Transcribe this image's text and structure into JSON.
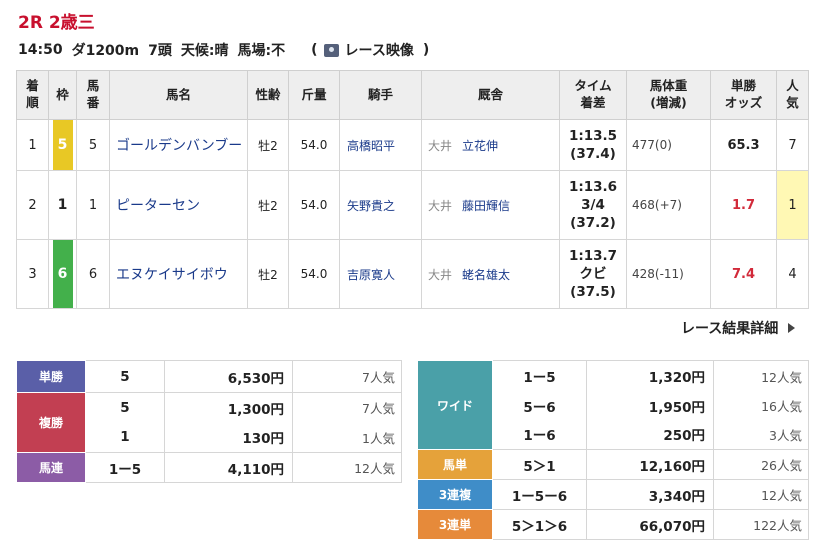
{
  "race": {
    "title": "2R 2歳三",
    "time": "14:50",
    "course": "ダ1200m",
    "heads": "7頭",
    "weather": "天候:晴",
    "going": "馬場:不",
    "paren_open": "(",
    "video_label": "レース映像",
    "paren_close": ")"
  },
  "table": {
    "headers": {
      "rank": "着順",
      "waku": "枠",
      "umaban": "馬番",
      "name": "馬名",
      "sexage": "性齢",
      "kinryo": "斤量",
      "jockey": "騎手",
      "trainer": "厩舎",
      "time": "タイム着差",
      "weight": "馬体重(増減)",
      "odds": "単勝オッズ",
      "pop": "人気"
    },
    "rows": [
      {
        "rank": "1",
        "waku": "5",
        "waku_color": "#e8c825",
        "umaban": "5",
        "name": "ゴールデンバンブー",
        "sexage": "牡2",
        "kinryo": "54.0",
        "jockey": "高橋昭平",
        "region": "大井",
        "trainer": "立花伸",
        "time": "1:13.5",
        "margin": "",
        "margin_time": "(37.4)",
        "weight": "477(0)",
        "odds": "65.3",
        "pop": "7"
      },
      {
        "rank": "2",
        "waku": "1",
        "waku_color": "#ffffff",
        "umaban": "1",
        "name": "ピーターセン",
        "sexage": "牡2",
        "kinryo": "54.0",
        "jockey": "矢野貴之",
        "region": "大井",
        "trainer": "藤田輝信",
        "time": "1:13.6",
        "margin": "3/4",
        "margin_time": "(37.2)",
        "weight": "468(+7)",
        "odds": "1.7",
        "pop": "1"
      },
      {
        "rank": "3",
        "waku": "6",
        "waku_color": "#43b04b",
        "umaban": "6",
        "name": "エヌケイサイボウ",
        "sexage": "牡2",
        "kinryo": "54.0",
        "jockey": "吉原寛人",
        "region": "大井",
        "trainer": "蛯名雄太",
        "time": "1:13.7",
        "margin": "クビ",
        "margin_time": "(37.5)",
        "weight": "428(-11)",
        "odds": "7.4",
        "pop": "4"
      }
    ]
  },
  "detail_link": "レース結果詳細",
  "payouts_left": {
    "tansho": {
      "label": "単勝",
      "color": "#5a5fa8",
      "combo": "5",
      "amount": "6,530円",
      "pop": "7人気"
    },
    "fukusho": {
      "label": "複勝",
      "color": "#c23f52",
      "rows": [
        {
          "combo": "5",
          "amount": "1,300円",
          "pop": "7人気"
        },
        {
          "combo": "1",
          "amount": "130円",
          "pop": "1人気"
        }
      ]
    },
    "umaren": {
      "label": "馬連",
      "color": "#8c5ca6",
      "combo": "1ー5",
      "amount": "4,110円",
      "pop": "12人気"
    }
  },
  "payouts_right": {
    "wide": {
      "label": "ワイド",
      "color": "#4aa0a8",
      "rows": [
        {
          "combo": "1ー5",
          "amount": "1,320円",
          "pop": "12人気"
        },
        {
          "combo": "5ー6",
          "amount": "1,950円",
          "pop": "16人気"
        },
        {
          "combo": "1ー6",
          "amount": "250円",
          "pop": "3人気"
        }
      ]
    },
    "umatan": {
      "label": "馬単",
      "color": "#e5a23a",
      "combo": "5＞1",
      "amount": "12,160円",
      "pop": "26人気"
    },
    "sanrenpuku": {
      "label": "3連複",
      "color": "#3f8dc8",
      "combo": "1ー5ー6",
      "amount": "3,340円",
      "pop": "12人気"
    },
    "sanrentan": {
      "label": "3連単",
      "color": "#e68a3a",
      "combo": "5＞1＞6",
      "amount": "66,070円",
      "pop": "122人気"
    }
  }
}
